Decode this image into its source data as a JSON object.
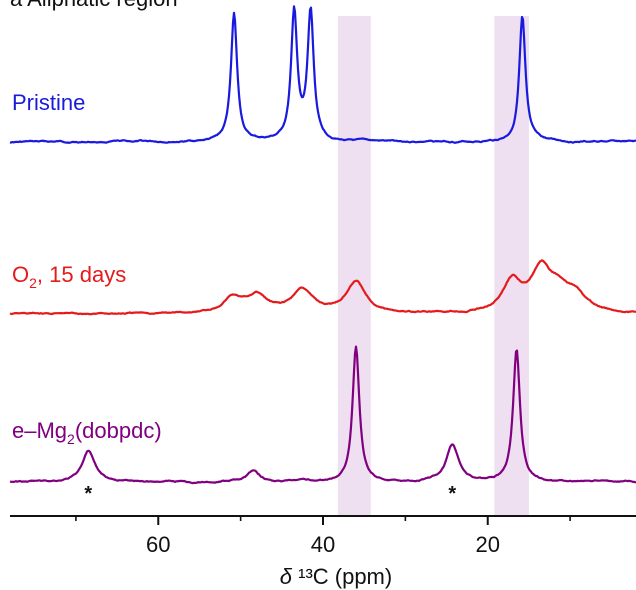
{
  "chart_data": {
    "type": "line",
    "title": "a  Aliphatic region",
    "xlabel": "δ ¹³C (ppm)",
    "xlim": [
      78,
      2
    ],
    "x_reversed": true,
    "xticks": [
      60,
      40,
      20
    ],
    "xtick_labels": [
      "60",
      "40",
      "20"
    ],
    "minor_xticks": [
      70,
      50,
      30,
      10
    ],
    "highlight_bands": [
      {
        "x0": 38.2,
        "x1": 34.2,
        "color": "#eedff1"
      },
      {
        "x0": 19.2,
        "x1": 15.0,
        "color": "#eedff1"
      }
    ],
    "series": [
      {
        "name": "Pristine",
        "label_parts": [
          "Pristine"
        ],
        "color": "#1a1adf",
        "baseline": 0,
        "peaks": [
          {
            "x": 50.8,
            "h": 1.0
          },
          {
            "x": 43.5,
            "h": 1.0
          },
          {
            "x": 41.5,
            "h": 1.0
          },
          {
            "x": 15.8,
            "h": 0.98
          }
        ]
      },
      {
        "name": "O₂, 15 days",
        "label_parts": [
          "O",
          "2",
          ", 15 days"
        ],
        "color": "#e41a1c",
        "baseline": 0,
        "peaks": [
          {
            "x": 51.0,
            "h": 0.12
          },
          {
            "x": 48.0,
            "h": 0.13
          },
          {
            "x": 42.5,
            "h": 0.18
          },
          {
            "x": 36.0,
            "h": 0.25
          },
          {
            "x": 17.0,
            "h": 0.24
          },
          {
            "x": 13.5,
            "h": 0.32
          },
          {
            "x": 11.3,
            "h": 0.15
          },
          {
            "x": 9.3,
            "h": 0.12
          }
        ]
      },
      {
        "name": "e–Mg₂(dobpdc)",
        "label_parts": [
          "e–Mg",
          "2",
          "(dobpdc)"
        ],
        "color": "#800080",
        "baseline": 0,
        "peaks": [
          {
            "x": 68.5,
            "h": 0.23
          },
          {
            "x": 48.5,
            "h": 0.08
          },
          {
            "x": 36.0,
            "h": 1.0
          },
          {
            "x": 24.3,
            "h": 0.27
          },
          {
            "x": 16.5,
            "h": 0.97
          }
        ]
      }
    ],
    "annotations": [
      {
        "text": "*",
        "x": 68.5
      },
      {
        "text": "*",
        "x": 24.3
      }
    ]
  }
}
